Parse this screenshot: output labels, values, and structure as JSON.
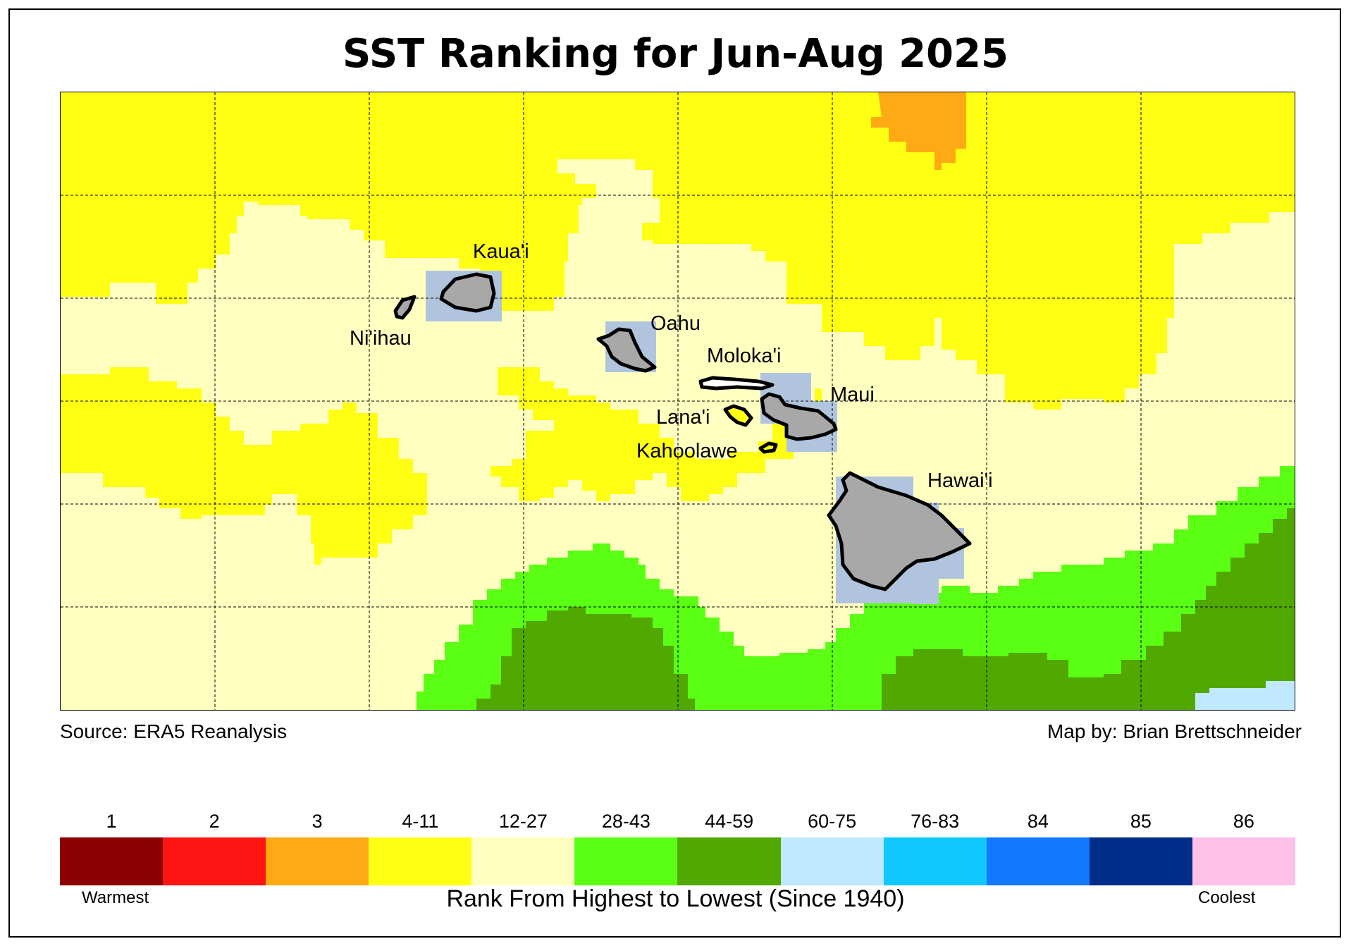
{
  "title": "SST Ranking for Jun-Aug 2025",
  "source": "Source: ERA5 Reanalysis",
  "credit": "Map by: Brian Brettschneider",
  "islands": [
    {
      "name": "Kaua'i"
    },
    {
      "name": "Ni'ihau"
    },
    {
      "name": "Oahu"
    },
    {
      "name": "Moloka'i"
    },
    {
      "name": "Maui"
    },
    {
      "name": "Lana'i"
    },
    {
      "name": "Kahoolawe"
    },
    {
      "name": "Hawai'i"
    }
  ],
  "legend": {
    "title": "Rank From Highest to Lowest (Since 1940)",
    "warmest_label": "Warmest",
    "coolest_label": "Coolest",
    "bins": [
      {
        "label": "1",
        "color": "#8b0000"
      },
      {
        "label": "2",
        "color": "#ff1414"
      },
      {
        "label": "3",
        "color": "#ffaa14"
      },
      {
        "label": "4-11",
        "color": "#ffff14"
      },
      {
        "label": "12-27",
        "color": "#ffffc0"
      },
      {
        "label": "28-43",
        "color": "#5aff14"
      },
      {
        "label": "44-59",
        "color": "#50a800"
      },
      {
        "label": "60-75",
        "color": "#c0e8ff"
      },
      {
        "label": "76-83",
        "color": "#10c8ff"
      },
      {
        "label": "84",
        "color": "#1478ff"
      },
      {
        "label": "85",
        "color": "#002c8a"
      },
      {
        "label": "86",
        "color": "#ffc0e8"
      }
    ]
  },
  "colors": {
    "land": "#a8a8a8",
    "land_mask": "#b0c4de",
    "grid": "#000000"
  }
}
